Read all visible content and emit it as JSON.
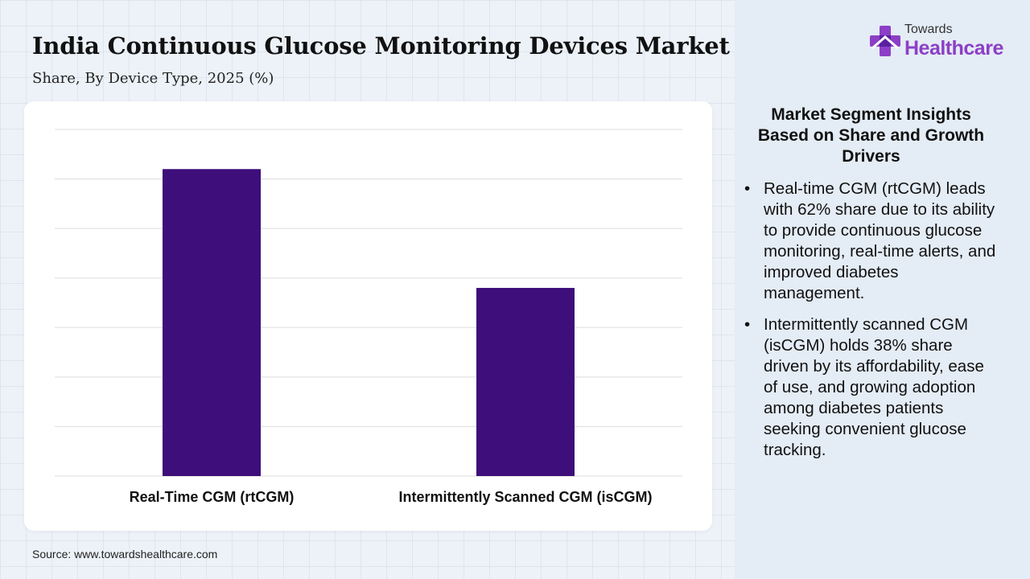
{
  "title": "India Continuous Glucose Monitoring Devices Market",
  "subtitle": "Share, By Device Type, 2025 (%)",
  "source": "Source: www.towardshealthcare.com",
  "logo": {
    "top": "Towards",
    "bottom": "Healthcare"
  },
  "insights": {
    "title": "Market Segment Insights Based on Share and Growth Drivers",
    "items": [
      "Real-time CGM (rtCGM) leads with 62% share due to its ability to provide continuous glucose monitoring, real-time alerts, and improved diabetes management.",
      "Intermittently scanned CGM (isCGM) holds 38% share driven by its affordability, ease of use, and growing adoption among diabetes patients seeking convenient glucose tracking."
    ]
  },
  "colors": {
    "bar": "#3e0e7a",
    "gridline": "#dddddd",
    "accent": "#8c3fc6"
  },
  "chart_data": {
    "type": "bar",
    "title": "India Continuous Glucose Monitoring Devices Market",
    "subtitle": "Share, By Device Type, 2025 (%)",
    "categories": [
      "Real-Time CGM (rtCGM)",
      "Intermittently Scanned CGM (isCGM)"
    ],
    "values": [
      62,
      38
    ],
    "ylim": [
      0,
      70
    ],
    "grid": true,
    "legend": "none",
    "xlabel": "",
    "ylabel": ""
  }
}
